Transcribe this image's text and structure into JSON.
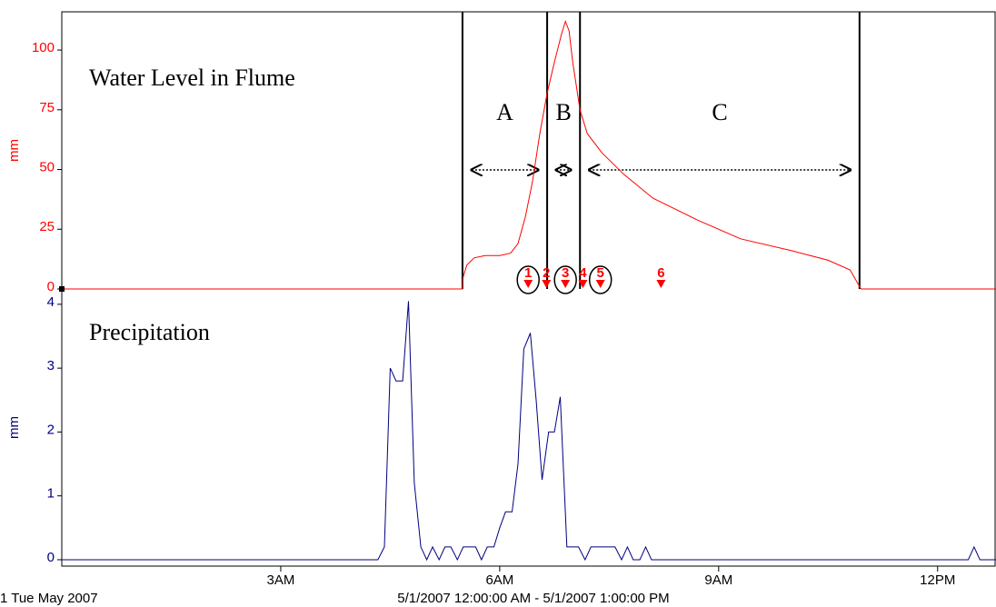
{
  "chart_data": [
    {
      "type": "line",
      "title": "Water Level in Flume",
      "ylabel": "mm",
      "color": "#ff0000",
      "xlim": [
        0,
        12.8
      ],
      "ylim": [
        0,
        116
      ],
      "yticks": [
        0,
        25,
        50,
        75,
        100
      ],
      "x": [
        0,
        5.49,
        5.5,
        5.55,
        5.65,
        5.8,
        6.0,
        6.15,
        6.25,
        6.35,
        6.45,
        6.55,
        6.65,
        6.75,
        6.85,
        6.9,
        6.95,
        7.0,
        7.1,
        7.2,
        7.4,
        7.7,
        8.1,
        8.7,
        9.3,
        10.0,
        10.5,
        10.8,
        10.95,
        12.8
      ],
      "values": [
        0,
        0,
        5,
        10,
        13,
        14,
        14,
        15,
        19,
        30,
        45,
        65,
        82,
        95,
        107,
        112,
        108,
        95,
        75,
        65,
        57,
        48,
        38,
        29,
        21,
        16,
        12,
        8,
        0,
        0
      ],
      "regions": {
        "bounds": [
          5.49,
          6.65,
          7.1,
          10.93
        ],
        "labels": [
          "A",
          "B",
          "C"
        ]
      },
      "events": [
        {
          "label": "1",
          "x": 6.39,
          "circled": true
        },
        {
          "label": "2",
          "x": 6.64,
          "circled": false
        },
        {
          "label": "3",
          "x": 6.9,
          "circled": true
        },
        {
          "label": "4",
          "x": 7.14,
          "circled": false
        },
        {
          "label": "5",
          "x": 7.38,
          "circled": true
        },
        {
          "label": "6",
          "x": 8.21,
          "circled": false
        }
      ]
    },
    {
      "type": "line",
      "title": "Precipitation",
      "ylabel": "mm",
      "color": "#000080",
      "xlim": [
        0,
        12.8
      ],
      "ylim": [
        -0.1,
        4.24
      ],
      "yticks": [
        0,
        1,
        2,
        3,
        4
      ],
      "xticks": [
        {
          "value": 3,
          "label": "3AM"
        },
        {
          "value": 6,
          "label": "6AM"
        },
        {
          "value": 9,
          "label": "9AM"
        },
        {
          "value": 12,
          "label": "12PM"
        }
      ],
      "x": [
        0,
        4.33,
        4.42,
        4.5,
        4.58,
        4.67,
        4.75,
        4.83,
        4.92,
        5.0,
        5.08,
        5.17,
        5.25,
        5.33,
        5.42,
        5.5,
        5.58,
        5.67,
        5.75,
        5.83,
        5.92,
        6.0,
        6.08,
        6.17,
        6.25,
        6.33,
        6.42,
        6.5,
        6.58,
        6.67,
        6.75,
        6.83,
        6.92,
        7.0,
        7.08,
        7.17,
        7.25,
        7.33,
        7.42,
        7.5,
        7.58,
        7.67,
        7.75,
        7.83,
        7.92,
        8.0,
        8.08,
        8.17,
        12.42,
        12.5,
        12.58,
        12.8
      ],
      "values": [
        0,
        0,
        0.2,
        3.0,
        2.8,
        2.8,
        4.05,
        1.2,
        0.2,
        0,
        0.2,
        0,
        0.2,
        0.2,
        0,
        0.2,
        0.2,
        0.2,
        0,
        0.2,
        0.2,
        0.5,
        0.75,
        0.75,
        1.5,
        3.3,
        3.55,
        2.5,
        1.25,
        2.0,
        2.0,
        2.55,
        0.2,
        0.2,
        0.2,
        0,
        0.2,
        0.2,
        0.2,
        0.2,
        0.2,
        0,
        0.2,
        0,
        0,
        0.2,
        0,
        0,
        0,
        0.2,
        0,
        0
      ]
    }
  ],
  "footer": {
    "left": "1 Tue May 2007",
    "range": "5/1/2007 12:00:00 AM - 5/1/2007 1:00:00 PM"
  }
}
